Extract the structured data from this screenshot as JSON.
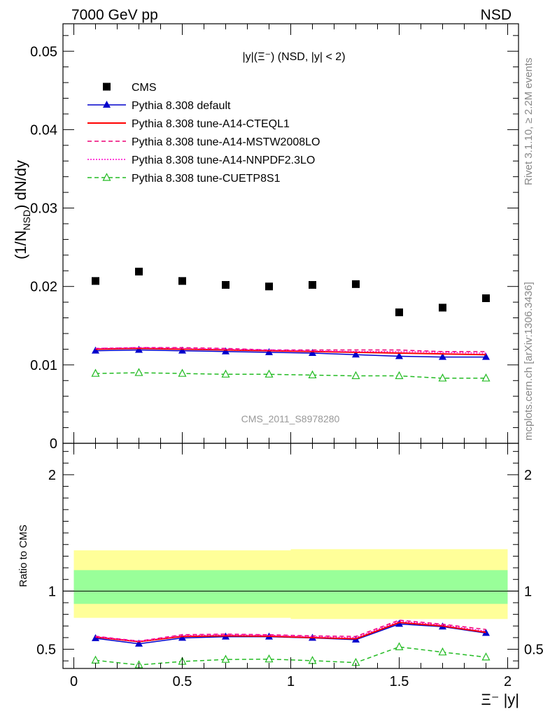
{
  "header": {
    "energy_label": "7000 GeV pp",
    "process_label": "NSD",
    "rivet_label": "Rivet 3.1.10, ≥ 2.2M events",
    "mcplots_label": "mcplots.cern.ch [arXiv:1306.3436]",
    "analysis_label": "CMS_2011_S8978280"
  },
  "chart_data": [
    {
      "type": "scatter",
      "panel": "main",
      "title": "|y|(Ξ⁻) (NSD, |y| < 2)",
      "ylabel": "(1/N_NSD) dN/dy",
      "xlabel": "",
      "xlim": [
        -0.05,
        2.05
      ],
      "ylim": [
        0,
        0.0535
      ],
      "yticks": [
        0.01,
        0.02,
        0.03,
        0.04,
        0.05
      ],
      "ytick_labels": [
        "0.01",
        "0.02",
        "0.03",
        "0.04",
        "0.05"
      ],
      "ytick_zero_label": "0",
      "legend_position": "top-left",
      "x": [
        0.1,
        0.3,
        0.5,
        0.7,
        0.9,
        1.1,
        1.3,
        1.5,
        1.7,
        1.9
      ],
      "series": [
        {
          "name": "CMS",
          "style": "data",
          "color": "#000000",
          "values": [
            0.0207,
            0.0219,
            0.0207,
            0.0202,
            0.02,
            0.0202,
            0.0203,
            0.0167,
            0.0173,
            0.0185
          ]
        },
        {
          "name": "Pythia 8.308 default",
          "style": "line-triangle",
          "color": "#0000cc",
          "values": [
            0.0118,
            0.0119,
            0.0118,
            0.0117,
            0.0116,
            0.0115,
            0.0113,
            0.0111,
            0.011,
            0.011
          ]
        },
        {
          "name": "Pythia 8.308 tune-A14-CTEQL1",
          "style": "solid",
          "color": "#ff0000",
          "values": [
            0.012,
            0.0121,
            0.012,
            0.0119,
            0.0118,
            0.0117,
            0.0116,
            0.0115,
            0.0114,
            0.0113
          ]
        },
        {
          "name": "Pythia 8.308 tune-A14-MSTW2008LO",
          "style": "dashed",
          "color": "#ee0077",
          "values": [
            0.0121,
            0.0122,
            0.0122,
            0.0121,
            0.0119,
            0.0119,
            0.0119,
            0.0119,
            0.0117,
            0.0117
          ]
        },
        {
          "name": "Pythia 8.308 tune-A14-NNPDF2.3LO",
          "style": "dotted",
          "color": "#ff00cc",
          "values": [
            0.0121,
            0.0122,
            0.0121,
            0.012,
            0.0119,
            0.0118,
            0.0117,
            0.0117,
            0.0116,
            0.0115
          ]
        },
        {
          "name": "Pythia 8.308 tune-CUETP8S1",
          "style": "dashed-open-triangle",
          "color": "#22bb22",
          "values": [
            0.0089,
            0.009,
            0.0089,
            0.0088,
            0.0088,
            0.0087,
            0.0086,
            0.0086,
            0.0083,
            0.0083
          ]
        }
      ]
    },
    {
      "type": "line",
      "panel": "ratio",
      "ylabel": "Ratio to CMS",
      "xlabel": "Ξ⁻ |y|",
      "xlim": [
        -0.05,
        2.05
      ],
      "ylim": [
        0.335,
        2.27
      ],
      "xticks": [
        0,
        0.5,
        1,
        1.5,
        2
      ],
      "xtick_labels": [
        "0",
        "0.5",
        "1",
        "1.5",
        "2"
      ],
      "yticks": [
        0.5,
        1,
        2
      ],
      "ytick_labels": [
        "0.5",
        "1",
        "2"
      ],
      "band_inner": {
        "color": "#99ff99",
        "segments": [
          [
            0.0,
            1.0,
            0.89,
            1.18
          ],
          [
            1.0,
            2.0,
            0.89,
            1.18
          ]
        ]
      },
      "band_outer": {
        "color": "#ffff99",
        "segments": [
          [
            0.0,
            1.0,
            0.77,
            1.35
          ],
          [
            1.0,
            2.0,
            0.76,
            1.36
          ]
        ]
      },
      "x": [
        0.1,
        0.3,
        0.5,
        0.7,
        0.9,
        1.1,
        1.3,
        1.5,
        1.7,
        1.9
      ],
      "series": [
        {
          "name": "Pythia 8.308 default",
          "style": "line-triangle",
          "color": "#0000cc",
          "values": [
            0.594,
            0.547,
            0.597,
            0.608,
            0.608,
            0.597,
            0.582,
            0.717,
            0.694,
            0.639
          ]
        },
        {
          "name": "Pythia 8.308 tune-A14-CTEQL1",
          "style": "solid",
          "color": "#ff0000",
          "values": [
            0.605,
            0.565,
            0.61,
            0.615,
            0.612,
            0.6,
            0.59,
            0.73,
            0.7,
            0.645
          ]
        },
        {
          "name": "Pythia 8.308 tune-A14-MSTW2008LO",
          "style": "dashed",
          "color": "#ee0077",
          "values": [
            0.612,
            0.57,
            0.625,
            0.63,
            0.625,
            0.615,
            0.61,
            0.75,
            0.715,
            0.67
          ]
        },
        {
          "name": "Pythia 8.308 tune-A14-NNPDF2.3LO",
          "style": "dotted",
          "color": "#ff00cc",
          "values": [
            0.608,
            0.568,
            0.618,
            0.624,
            0.62,
            0.608,
            0.6,
            0.74,
            0.708,
            0.655
          ]
        },
        {
          "name": "Pythia 8.308 tune-CUETP8S1",
          "style": "dashed-open-triangle",
          "color": "#22bb22",
          "values": [
            0.405,
            0.365,
            0.395,
            0.412,
            0.415,
            0.402,
            0.385,
            0.52,
            0.475,
            0.432
          ]
        }
      ]
    }
  ]
}
